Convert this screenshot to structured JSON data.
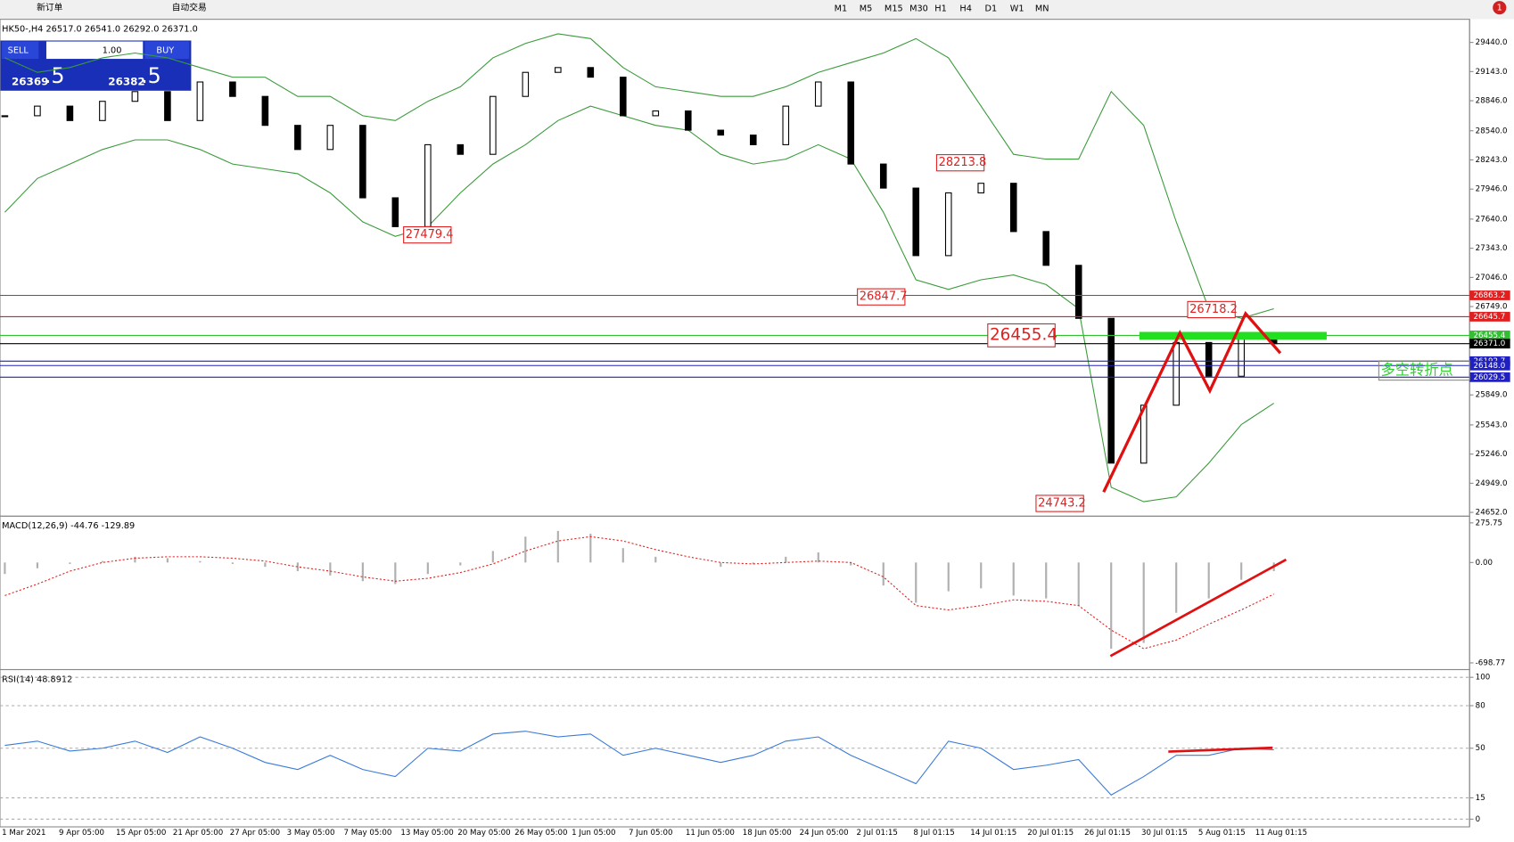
{
  "toolbar": {
    "new_order": "新订单",
    "auto_trading": "自动交易",
    "timeframes": [
      "M1",
      "M5",
      "M15",
      "M30",
      "H1",
      "H4",
      "D1",
      "W1",
      "MN"
    ],
    "notifications": "1"
  },
  "order_panel": {
    "sell": "SELL",
    "volume": "1.00",
    "buy": "BUY",
    "bid_main": "26369",
    "bid_pips": ".5",
    "ask_main": "26382",
    "ask_pips": ".5"
  },
  "time_labels": [
    "1 Mar 2021",
    "9 Apr 05:00",
    "15 Apr 05:00",
    "21 Apr 05:00",
    "27 Apr 05:00",
    "3 May 05:00",
    "7 May 05:00",
    "13 May 05:00",
    "20 May 05:00",
    "26 May 05:00",
    "1 Jun 05:00",
    "7 Jun 05:00",
    "11 Jun 05:00",
    "18 Jun 05:00",
    "24 Jun 05:00",
    "2 Jul 01:15",
    "8 Jul 01:15",
    "14 Jul 01:15",
    "20 Jul 01:15",
    "26 Jul 01:15",
    "30 Jul 01:15",
    "5 Aug 01:15",
    "11 Aug 01:15"
  ],
  "chart_data": [
    {
      "type": "candlestick",
      "title": "HK50-,H4 26517.0 26541.0 26292.0 26371.0",
      "close": [
        28693,
        28791,
        28644,
        28840,
        28939,
        28644,
        29037,
        28890,
        28595,
        28349,
        28595,
        27857,
        27563,
        28398,
        28300,
        28890,
        29135,
        29184,
        29086,
        28693,
        28742,
        28546,
        28496,
        28398,
        28791,
        29037,
        28201,
        27956,
        27268,
        27907,
        28005,
        27513,
        27169,
        26629,
        25154,
        25744,
        26383,
        26039,
        26432,
        26371
      ],
      "bb_upper": [
        29283,
        29135,
        29184,
        29283,
        29332,
        29283,
        29184,
        29086,
        29086,
        28890,
        28890,
        28693,
        28644,
        28840,
        28988,
        29283,
        29430,
        29528,
        29479,
        29184,
        28988,
        28939,
        28890,
        28890,
        28988,
        29135,
        29234,
        29332,
        29479,
        29283,
        28791,
        28300,
        28251,
        28251,
        28939,
        28595,
        27612,
        26727,
        26629,
        26727
      ],
      "bb_lower": [
        27710,
        28054,
        28201,
        28349,
        28447,
        28447,
        28349,
        28201,
        28152,
        28103,
        27907,
        27612,
        27464,
        27563,
        27907,
        28201,
        28398,
        28644,
        28791,
        28693,
        28595,
        28546,
        28300,
        28201,
        28251,
        28398,
        28251,
        27710,
        27022,
        26924,
        27022,
        27071,
        26973,
        26727,
        24908,
        24761,
        24810,
        25154,
        25547,
        25764
      ],
      "band_color": "#3a9a3a",
      "ylim": [
        24633,
        29656
      ],
      "yticks": [
        {
          "value": 29440,
          "label": "29440.0"
        },
        {
          "value": 29143,
          "label": "29143.0"
        },
        {
          "value": 28846,
          "label": "28846.0"
        },
        {
          "value": 28540,
          "label": "28540.0"
        },
        {
          "value": 28243,
          "label": "28243.0"
        },
        {
          "value": 27946,
          "label": "27946.0"
        },
        {
          "value": 27640,
          "label": "27640.0"
        },
        {
          "value": 27343,
          "label": "27343.0"
        },
        {
          "value": 27046,
          "label": "27046.0"
        },
        {
          "value": 26749,
          "label": "26749.0"
        },
        {
          "value": 25849,
          "label": "25849.0"
        },
        {
          "value": 25543,
          "label": "25543.0"
        },
        {
          "value": 25246,
          "label": "25246.0"
        },
        {
          "value": 24949,
          "label": "24949.0"
        },
        {
          "value": 24652,
          "label": "24652.0"
        }
      ],
      "levels": [
        {
          "value": 26863.2,
          "color": "#e02020"
        },
        {
          "value": 26645.7,
          "color": "#e02020"
        },
        {
          "value": 26455.4,
          "color": "#30c030"
        },
        {
          "value": 26371,
          "label": "26371.0",
          "color": "#000000"
        },
        {
          "value": 26192.7,
          "color": "#2020c0"
        },
        {
          "value": 26148,
          "label": "26148.0",
          "color": "#2020c0"
        },
        {
          "value": 26029.5,
          "color": "#2020c0"
        }
      ],
      "annotations": [
        {
          "value": 27479.4
        },
        {
          "value": 28213.8
        },
        {
          "value": 26847.7
        },
        {
          "value": 26455.4
        },
        {
          "value": 26718.2
        },
        {
          "value": 24743.2
        }
      ],
      "note": "多空转折点"
    },
    {
      "type": "macd",
      "title": "MACD(12,26,9) -44.76 -129.89",
      "histogram": [
        -80,
        -40,
        -10,
        10,
        40,
        30,
        10,
        -10,
        -30,
        -60,
        -90,
        -130,
        -150,
        -80,
        -20,
        80,
        180,
        220,
        200,
        100,
        40,
        0,
        -30,
        -10,
        40,
        70,
        -20,
        -160,
        -280,
        -200,
        -180,
        -230,
        -250,
        -300,
        -600,
        -560,
        -350,
        -250,
        -120,
        -60
      ],
      "signal": [
        -230,
        -150,
        -60,
        0,
        30,
        40,
        40,
        30,
        10,
        -30,
        -60,
        -100,
        -130,
        -110,
        -70,
        -10,
        80,
        150,
        180,
        150,
        90,
        40,
        0,
        -10,
        0,
        10,
        0,
        -100,
        -300,
        -330,
        -300,
        -260,
        -270,
        -300,
        -470,
        -600,
        -540,
        -430,
        -330,
        -220
      ],
      "ylim": [
        -732,
        309
      ],
      "yticks": [
        275.75,
        {
          "value": 0,
          "label": "0.00"
        },
        -698.77
      ]
    },
    {
      "type": "line",
      "title": "RSI(14) 48.8912",
      "values": [
        52,
        55,
        48,
        50,
        55,
        47,
        58,
        50,
        40,
        35,
        45,
        35,
        30,
        50,
        48,
        60,
        62,
        58,
        60,
        45,
        50,
        45,
        40,
        45,
        55,
        58,
        45,
        35,
        25,
        55,
        50,
        35,
        38,
        42,
        17,
        30,
        45,
        45,
        50,
        48.9
      ],
      "color": "#3a7ad8",
      "ylim": [
        0,
        100
      ],
      "yticks": [
        100,
        80,
        50,
        15,
        0
      ]
    }
  ]
}
